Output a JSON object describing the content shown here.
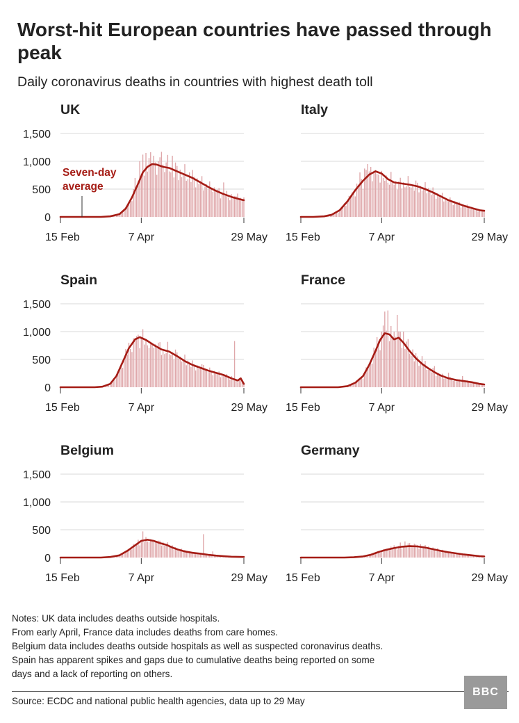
{
  "title": "Worst-hit European countries have passed through peak",
  "subtitle": "Daily coronavirus deaths in countries with highest death toll",
  "annotation": {
    "line1": "Seven-day",
    "line2": "average"
  },
  "colors": {
    "bar": "#dfa7aa",
    "line": "#a51c15",
    "grid": "#d9d9d9",
    "axis": "#333333",
    "text": "#222222"
  },
  "notes": [
    "Notes: UK data includes deaths outside hospitals.",
    "From early April, France data includes deaths from care homes.",
    "Belgium data includes deaths outside hospitals as well as suspected coronavirus deaths.",
    "Spain has apparent spikes and gaps due to cumulative deaths being reported on some",
    "days and a lack of reporting on others."
  ],
  "source": "Source: ECDC and national public health agencies, data up to 29 May",
  "logo": {
    "text": "BBC"
  },
  "chart_data": [
    {
      "type": "bar",
      "title": "UK",
      "x_ticks": [
        "15 Feb",
        "7 Apr",
        "29 May"
      ],
      "y_ticks": [
        "0",
        "500",
        "1,000",
        "1,500"
      ],
      "ylim": [
        0,
        1500
      ],
      "series": [
        {
          "name": "Seven-day average",
          "points": [
            [
              0,
              0
            ],
            [
              26,
              0
            ],
            [
              32,
              10
            ],
            [
              38,
              50
            ],
            [
              42,
              150
            ],
            [
              46,
              350
            ],
            [
              50,
              600
            ],
            [
              53,
              800
            ],
            [
              56,
              900
            ],
            [
              59,
              950
            ],
            [
              62,
              940
            ],
            [
              66,
              900
            ],
            [
              70,
              880
            ],
            [
              75,
              820
            ],
            [
              80,
              760
            ],
            [
              85,
              700
            ],
            [
              90,
              620
            ],
            [
              95,
              540
            ],
            [
              100,
              470
            ],
            [
              105,
              410
            ],
            [
              110,
              360
            ],
            [
              115,
              320
            ],
            [
              118,
              300
            ]
          ],
          "spikes": [
            [
              48,
              700
            ],
            [
              51,
              1000
            ],
            [
              53,
              1120
            ],
            [
              55,
              1150
            ],
            [
              57,
              1060
            ],
            [
              60,
              1100
            ],
            [
              63,
              1000
            ],
            [
              65,
              1170
            ],
            [
              68,
              980
            ],
            [
              72,
              1100
            ],
            [
              77,
              850
            ],
            [
              83,
              800
            ],
            [
              98,
              450
            ],
            [
              105,
              620
            ],
            [
              114,
              420
            ]
          ]
        }
      ]
    },
    {
      "type": "bar",
      "title": "Italy",
      "x_ticks": [
        "15 Feb",
        "7 Apr",
        "29 May"
      ],
      "y_ticks": [
        "0",
        "500",
        "1,000",
        "1,500"
      ],
      "ylim": [
        0,
        1500
      ],
      "series": [
        {
          "name": "Seven-day average",
          "points": [
            [
              0,
              0
            ],
            [
              8,
              0
            ],
            [
              15,
              10
            ],
            [
              20,
              40
            ],
            [
              25,
              120
            ],
            [
              30,
              280
            ],
            [
              35,
              480
            ],
            [
              40,
              650
            ],
            [
              44,
              760
            ],
            [
              48,
              820
            ],
            [
              52,
              780
            ],
            [
              56,
              680
            ],
            [
              60,
              620
            ],
            [
              65,
              600
            ],
            [
              70,
              580
            ],
            [
              75,
              550
            ],
            [
              80,
              500
            ],
            [
              85,
              440
            ],
            [
              90,
              370
            ],
            [
              95,
              300
            ],
            [
              100,
              250
            ],
            [
              105,
              200
            ],
            [
              110,
              160
            ],
            [
              115,
              120
            ],
            [
              118,
              110
            ]
          ],
          "spikes": [
            [
              38,
              800
            ],
            [
              41,
              870
            ],
            [
              43,
              950
            ],
            [
              45,
              900
            ],
            [
              47,
              830
            ],
            [
              50,
              760
            ],
            [
              53,
              700
            ],
            [
              63,
              640
            ],
            [
              72,
              580
            ],
            [
              82,
              520
            ]
          ]
        }
      ]
    },
    {
      "type": "bar",
      "title": "Spain",
      "x_ticks": [
        "15 Feb",
        "7 Apr",
        "29 May"
      ],
      "y_ticks": [
        "0",
        "500",
        "1,000",
        "1,500"
      ],
      "ylim": [
        0,
        1500
      ],
      "series": [
        {
          "name": "Seven-day average",
          "points": [
            [
              0,
              0
            ],
            [
              22,
              0
            ],
            [
              27,
              10
            ],
            [
              32,
              60
            ],
            [
              36,
              200
            ],
            [
              40,
              450
            ],
            [
              44,
              700
            ],
            [
              48,
              860
            ],
            [
              51,
              900
            ],
            [
              55,
              850
            ],
            [
              60,
              760
            ],
            [
              65,
              680
            ],
            [
              70,
              640
            ],
            [
              75,
              560
            ],
            [
              80,
              470
            ],
            [
              85,
              400
            ],
            [
              90,
              350
            ],
            [
              95,
              300
            ],
            [
              100,
              260
            ],
            [
              105,
              220
            ],
            [
              110,
              160
            ],
            [
              114,
              120
            ],
            [
              116,
              160
            ],
            [
              118,
              60
            ]
          ],
          "spikes": [
            [
              44,
              800
            ],
            [
              47,
              880
            ],
            [
              49,
              920
            ],
            [
              52,
              900
            ],
            [
              55,
              860
            ],
            [
              58,
              780
            ],
            [
              62,
              700
            ],
            [
              66,
              650
            ],
            [
              76,
              520
            ],
            [
              82,
              480
            ],
            [
              92,
              400
            ],
            [
              110,
              200
            ],
            [
              112,
              830
            ]
          ]
        }
      ]
    },
    {
      "type": "bar",
      "title": "France",
      "x_ticks": [
        "15 Feb",
        "7 Apr",
        "29 May"
      ],
      "y_ticks": [
        "0",
        "500",
        "1,000",
        "1,500"
      ],
      "ylim": [
        0,
        1500
      ],
      "series": [
        {
          "name": "Seven-day average",
          "points": [
            [
              0,
              0
            ],
            [
              24,
              0
            ],
            [
              30,
              20
            ],
            [
              35,
              80
            ],
            [
              40,
              200
            ],
            [
              44,
              400
            ],
            [
              48,
              650
            ],
            [
              51,
              850
            ],
            [
              54,
              970
            ],
            [
              57,
              950
            ],
            [
              60,
              860
            ],
            [
              63,
              890
            ],
            [
              66,
              800
            ],
            [
              70,
              650
            ],
            [
              74,
              520
            ],
            [
              78,
              420
            ],
            [
              82,
              340
            ],
            [
              86,
              270
            ],
            [
              90,
              210
            ],
            [
              95,
              160
            ],
            [
              100,
              130
            ],
            [
              105,
              110
            ],
            [
              110,
              90
            ],
            [
              115,
              60
            ],
            [
              118,
              50
            ]
          ],
          "spikes": [
            [
              49,
              900
            ],
            [
              52,
              1000
            ],
            [
              54,
              1360
            ],
            [
              56,
              1380
            ],
            [
              58,
              1100
            ],
            [
              60,
              1000
            ],
            [
              62,
              1300
            ],
            [
              64,
              1000
            ],
            [
              66,
              1000
            ],
            [
              68,
              820
            ],
            [
              72,
              680
            ],
            [
              78,
              560
            ],
            [
              86,
              380
            ],
            [
              95,
              260
            ],
            [
              104,
              200
            ]
          ]
        }
      ]
    },
    {
      "type": "bar",
      "title": "Belgium",
      "x_ticks": [
        "15 Feb",
        "7 Apr",
        "29 May"
      ],
      "y_ticks": [
        "0",
        "500",
        "1,000",
        "1,500"
      ],
      "ylim": [
        0,
        1500
      ],
      "series": [
        {
          "name": "Seven-day average",
          "points": [
            [
              0,
              0
            ],
            [
              26,
              0
            ],
            [
              32,
              10
            ],
            [
              38,
              40
            ],
            [
              43,
              120
            ],
            [
              48,
              220
            ],
            [
              52,
              300
            ],
            [
              56,
              320
            ],
            [
              60,
              300
            ],
            [
              64,
              260
            ],
            [
              68,
              230
            ],
            [
              72,
              180
            ],
            [
              76,
              140
            ],
            [
              80,
              110
            ],
            [
              85,
              85
            ],
            [
              90,
              70
            ],
            [
              95,
              50
            ],
            [
              100,
              35
            ],
            [
              105,
              25
            ],
            [
              110,
              15
            ],
            [
              118,
              10
            ]
          ],
          "spikes": [
            [
              50,
              320
            ],
            [
              53,
              470
            ],
            [
              55,
              370
            ],
            [
              58,
              330
            ],
            [
              62,
              300
            ],
            [
              66,
              280
            ],
            [
              72,
              220
            ],
            [
              78,
              160
            ],
            [
              92,
              420
            ],
            [
              98,
              110
            ]
          ]
        }
      ]
    },
    {
      "type": "bar",
      "title": "Germany",
      "x_ticks": [
        "15 Feb",
        "7 Apr",
        "29 May"
      ],
      "y_ticks": [
        "0",
        "500",
        "1,000",
        "1,500"
      ],
      "ylim": [
        0,
        1500
      ],
      "series": [
        {
          "name": "Seven-day average",
          "points": [
            [
              0,
              0
            ],
            [
              28,
              0
            ],
            [
              34,
              5
            ],
            [
              40,
              20
            ],
            [
              45,
              50
            ],
            [
              50,
              100
            ],
            [
              55,
              140
            ],
            [
              60,
              170
            ],
            [
              65,
              195
            ],
            [
              70,
              205
            ],
            [
              75,
              200
            ],
            [
              80,
              180
            ],
            [
              85,
              150
            ],
            [
              90,
              120
            ],
            [
              95,
              95
            ],
            [
              100,
              75
            ],
            [
              105,
              55
            ],
            [
              110,
              40
            ],
            [
              115,
              25
            ],
            [
              118,
              20
            ]
          ],
          "spikes": [
            [
              60,
              220
            ],
            [
              64,
              270
            ],
            [
              67,
              290
            ],
            [
              70,
              260
            ],
            [
              73,
              250
            ],
            [
              77,
              240
            ],
            [
              82,
              200
            ],
            [
              88,
              170
            ]
          ]
        }
      ]
    }
  ]
}
